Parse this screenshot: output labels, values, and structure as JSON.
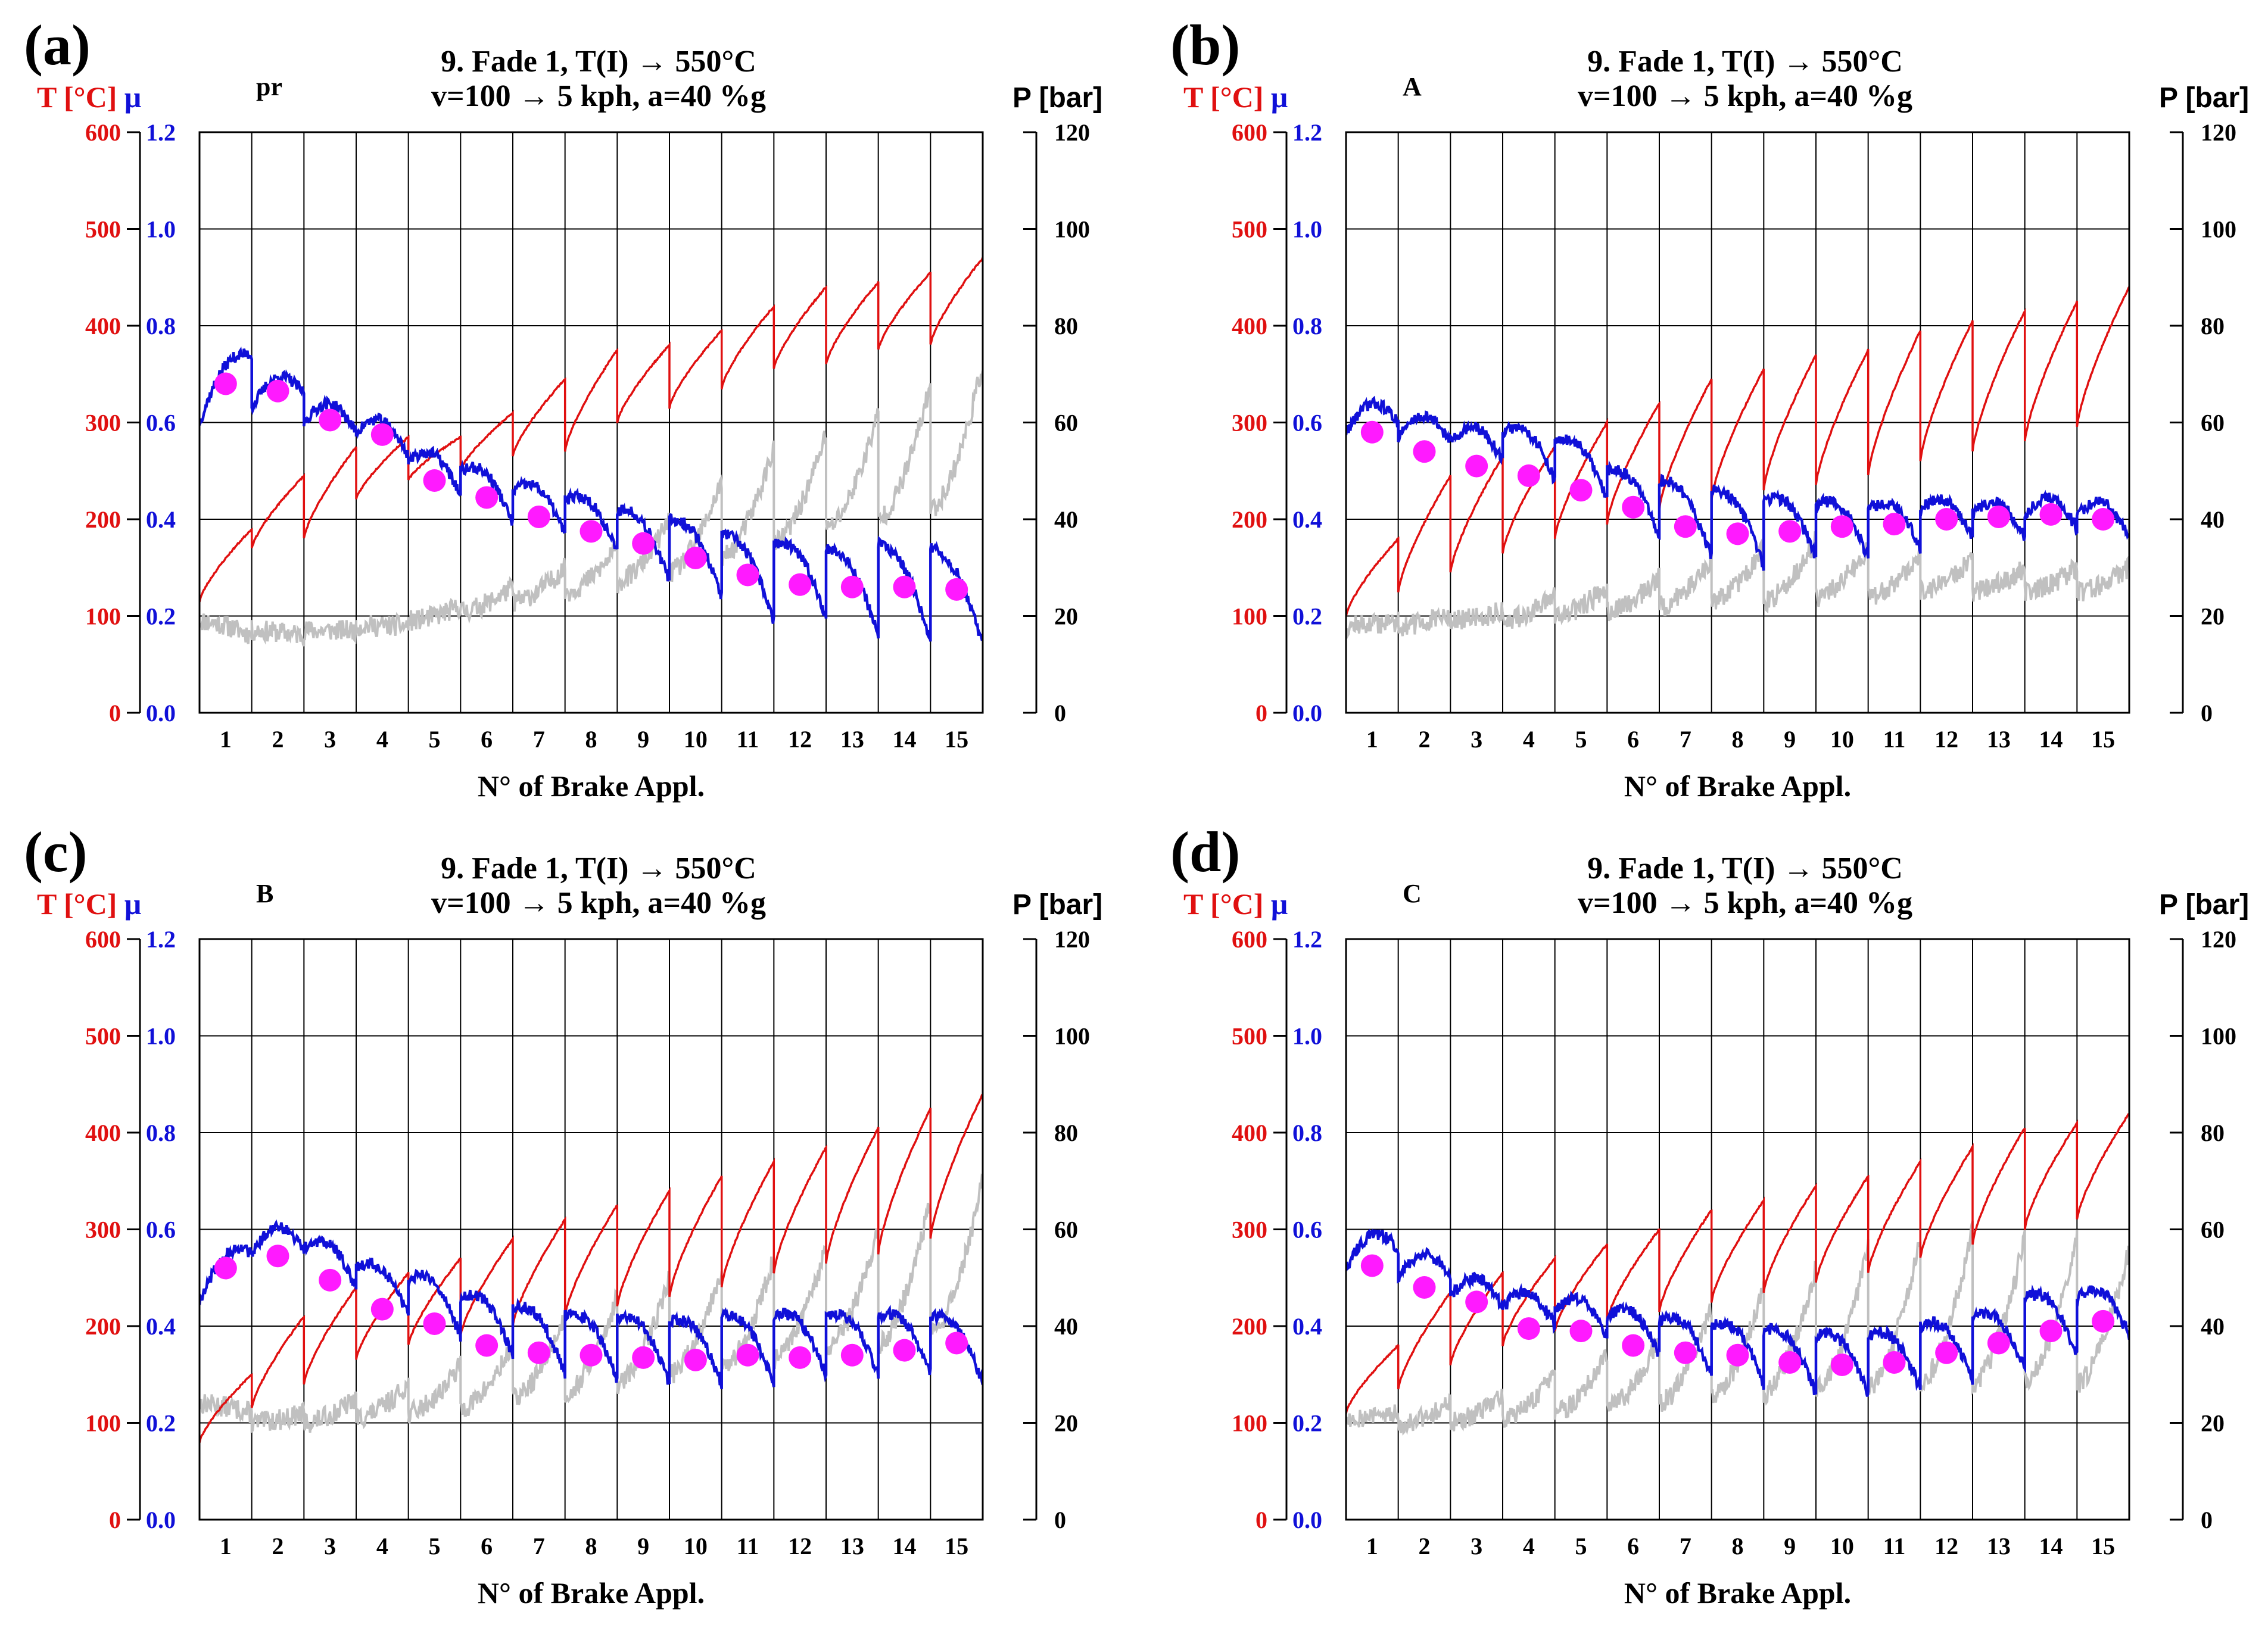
{
  "figure": {
    "x_label": "N° of Brake Appl.",
    "left_axis_title_T": "T [°C]",
    "left_axis_title_mu": "μ",
    "right_axis_title": "P [bar]",
    "title_line1": "9. Fade 1, T(I) → 550°C",
    "title_line2": "v=100 → 5 kph, a=40 %g",
    "colors": {
      "temperature": "#e01010",
      "mu": "#1010d8",
      "pressure": "#c0c0c0",
      "mu_marker": "#ff1aff",
      "grid": "#000000",
      "axis_red": "#e01010",
      "axis_blue": "#1010d8"
    },
    "axes": {
      "x_ticks": [
        "1",
        "2",
        "3",
        "4",
        "5",
        "6",
        "7",
        "8",
        "9",
        "10",
        "11",
        "12",
        "13",
        "14",
        "15"
      ],
      "T_ticks": [
        "0",
        "100",
        "200",
        "300",
        "400",
        "500",
        "600"
      ],
      "mu_ticks": [
        "0.0",
        "0.2",
        "0.4",
        "0.6",
        "0.8",
        "1.0",
        "1.2"
      ],
      "P_ticks": [
        "0",
        "20",
        "40",
        "60",
        "80",
        "100",
        "120"
      ],
      "T_range": [
        0,
        600
      ],
      "mu_range": [
        0,
        1.2
      ],
      "P_range": [
        0,
        120
      ]
    }
  },
  "chart_data": [
    {
      "type": "line",
      "panel_label": "(a)",
      "sample": "pr",
      "series_T_start": [
        115,
        170,
        180,
        220,
        240,
        250,
        265,
        270,
        300,
        315,
        335,
        355,
        360,
        375,
        380
      ],
      "series_T_end": [
        190,
        245,
        275,
        285,
        285,
        310,
        345,
        375,
        380,
        395,
        420,
        440,
        445,
        455,
        470
      ],
      "series_mu_start": [
        0.6,
        0.63,
        0.6,
        0.58,
        0.52,
        0.5,
        0.46,
        0.44,
        0.42,
        0.4,
        0.37,
        0.35,
        0.34,
        0.35,
        0.34
      ],
      "series_mu_end": [
        0.74,
        0.66,
        0.58,
        0.53,
        0.45,
        0.39,
        0.37,
        0.33,
        0.27,
        0.24,
        0.19,
        0.2,
        0.16,
        0.15,
        0.14
      ],
      "series_P_start": [
        19,
        17,
        17,
        18,
        19,
        21,
        23,
        25,
        27,
        29,
        32,
        35,
        38,
        40,
        42
      ],
      "series_P_end": [
        16,
        16,
        17,
        18,
        22,
        26,
        30,
        34,
        40,
        48,
        55,
        58,
        62,
        68,
        72
      ],
      "mu_markers": [
        0.68,
        0.665,
        0.605,
        0.575,
        0.48,
        0.445,
        0.405,
        0.375,
        0.35,
        0.32,
        0.285,
        0.265,
        0.26,
        0.26,
        0.255
      ]
    },
    {
      "type": "line",
      "panel_label": "(b)",
      "sample": "A",
      "series_T_start": [
        100,
        125,
        145,
        165,
        180,
        195,
        210,
        220,
        230,
        235,
        245,
        260,
        270,
        280,
        295
      ],
      "series_T_end": [
        180,
        245,
        265,
        275,
        300,
        320,
        345,
        355,
        370,
        375,
        395,
        405,
        415,
        425,
        440
      ],
      "series_mu_start": [
        0.58,
        0.57,
        0.56,
        0.58,
        0.56,
        0.5,
        0.48,
        0.46,
        0.44,
        0.43,
        0.42,
        0.42,
        0.41,
        0.41,
        0.41
      ],
      "series_mu_end": [
        0.6,
        0.56,
        0.52,
        0.48,
        0.44,
        0.36,
        0.32,
        0.3,
        0.32,
        0.32,
        0.34,
        0.36,
        0.36,
        0.38,
        0.36
      ],
      "series_P_start": [
        18,
        18,
        19,
        19,
        20,
        21,
        22,
        23,
        23,
        24,
        24,
        25,
        25,
        25,
        25
      ],
      "series_P_end": [
        19,
        20,
        21,
        24,
        26,
        28,
        32,
        34,
        36,
        34,
        33,
        32,
        30,
        30,
        30
      ],
      "mu_markers": [
        0.58,
        0.54,
        0.51,
        0.49,
        0.46,
        0.425,
        0.385,
        0.37,
        0.375,
        0.385,
        0.39,
        0.4,
        0.405,
        0.41,
        0.4
      ]
    },
    {
      "type": "line",
      "panel_label": "(c)",
      "sample": "B",
      "series_T_start": [
        80,
        115,
        140,
        165,
        180,
        190,
        200,
        210,
        220,
        230,
        240,
        255,
        265,
        275,
        290
      ],
      "series_T_end": [
        150,
        210,
        240,
        255,
        270,
        290,
        310,
        325,
        340,
        355,
        370,
        385,
        405,
        425,
        440
      ],
      "series_mu_start": [
        0.45,
        0.55,
        0.56,
        0.52,
        0.5,
        0.46,
        0.44,
        0.42,
        0.42,
        0.41,
        0.42,
        0.42,
        0.42,
        0.42,
        0.42
      ],
      "series_mu_end": [
        0.55,
        0.56,
        0.48,
        0.42,
        0.38,
        0.34,
        0.3,
        0.29,
        0.28,
        0.28,
        0.28,
        0.3,
        0.3,
        0.3,
        0.28
      ],
      "series_P_start": [
        24,
        20,
        20,
        21,
        22,
        23,
        25,
        26,
        28,
        30,
        31,
        33,
        35,
        36,
        38
      ],
      "series_P_end": [
        22,
        22,
        25,
        28,
        32,
        36,
        42,
        46,
        50,
        52,
        54,
        56,
        60,
        66,
        70
      ],
      "mu_markers": [
        0.52,
        0.545,
        0.495,
        0.435,
        0.405,
        0.36,
        0.345,
        0.34,
        0.335,
        0.33,
        0.34,
        0.335,
        0.34,
        0.35,
        0.365
      ]
    },
    {
      "type": "line",
      "panel_label": "(d)",
      "sample": "C",
      "series_T_start": [
        110,
        135,
        160,
        180,
        195,
        205,
        215,
        225,
        235,
        245,
        255,
        270,
        285,
        300,
        310
      ],
      "series_T_end": [
        180,
        235,
        255,
        270,
        285,
        300,
        320,
        330,
        345,
        355,
        370,
        385,
        405,
        410,
        420
      ],
      "series_mu_start": [
        0.52,
        0.5,
        0.46,
        0.44,
        0.43,
        0.42,
        0.41,
        0.4,
        0.39,
        0.38,
        0.38,
        0.4,
        0.42,
        0.46,
        0.46
      ],
      "series_mu_end": [
        0.56,
        0.5,
        0.44,
        0.4,
        0.38,
        0.34,
        0.3,
        0.28,
        0.26,
        0.26,
        0.27,
        0.29,
        0.31,
        0.34,
        0.38
      ],
      "series_P_start": [
        21,
        20,
        20,
        21,
        22,
        23,
        24,
        25,
        26,
        27,
        27,
        28,
        28,
        28,
        28
      ],
      "series_P_end": [
        22,
        24,
        26,
        30,
        34,
        38,
        44,
        48,
        52,
        56,
        58,
        60,
        58,
        58,
        56
      ],
      "mu_markers": [
        0.525,
        0.48,
        0.45,
        0.395,
        0.39,
        0.36,
        0.345,
        0.34,
        0.325,
        0.32,
        0.325,
        0.345,
        0.365,
        0.39,
        0.41
      ]
    }
  ]
}
